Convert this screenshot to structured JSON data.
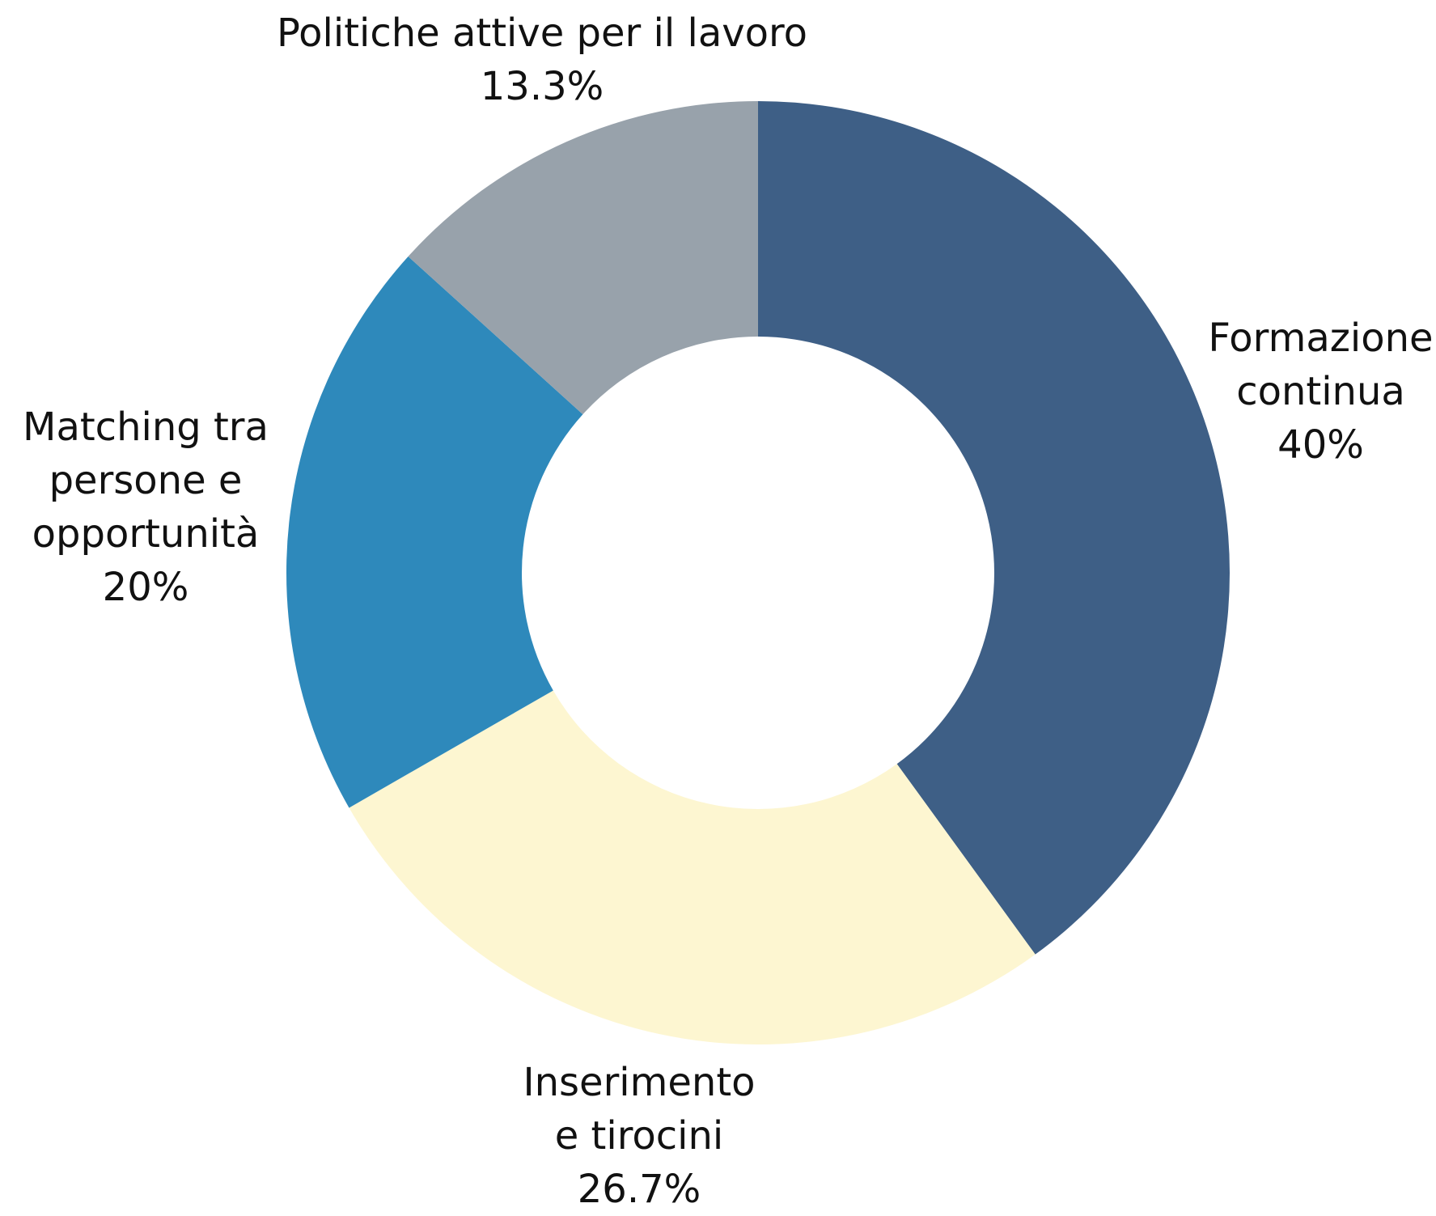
{
  "chart_data": {
    "type": "pie",
    "donut": true,
    "categories": [
      "Formazione continua",
      "Inserimento e tirocini",
      "Matching tra persone e opportunità",
      "Politiche attive per il lavoro"
    ],
    "values": [
      40,
      26.7,
      20,
      13.3
    ],
    "unit": "%",
    "colors": [
      "#3e5f86",
      "#fdf6d1",
      "#2e89bb",
      "#98a2ab"
    ],
    "legend": "none",
    "labels": [
      {
        "lines": [
          "Formazione",
          "continua"
        ],
        "value": "40%"
      },
      {
        "lines": [
          "Inserimento",
          "e tirocini"
        ],
        "value": "26.7%"
      },
      {
        "lines": [
          "Matching tra",
          "persone e",
          "opportunità"
        ],
        "value": "20%"
      },
      {
        "lines": [
          "Politiche attive per il lavoro"
        ],
        "value": "13.3%"
      }
    ]
  }
}
